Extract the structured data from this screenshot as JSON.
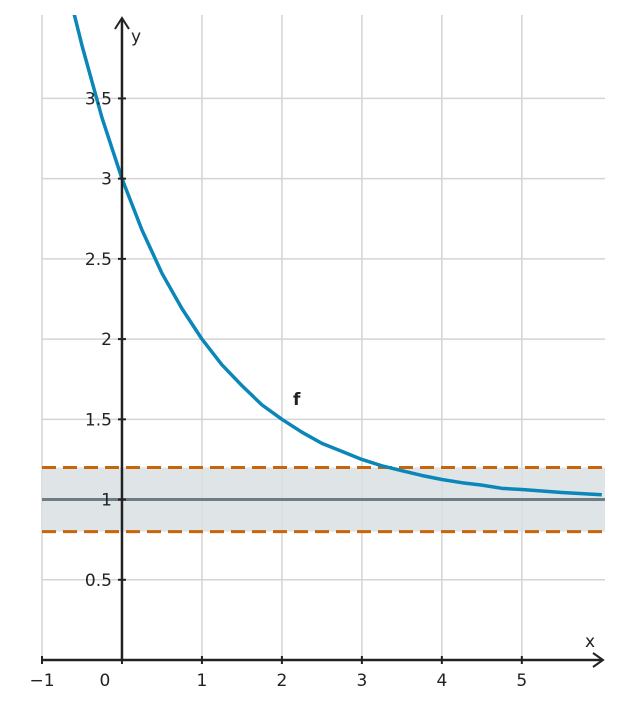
{
  "chart_data": {
    "type": "line",
    "x_label": "x",
    "y_label": "y",
    "x": [
      -0.6,
      -0.5,
      -0.25,
      0,
      0.25,
      0.5,
      0.75,
      1,
      1.25,
      1.5,
      1.75,
      2,
      2.25,
      2.5,
      2.75,
      3,
      3.25,
      3.5,
      3.75,
      4,
      4.25,
      4.5,
      4.75,
      5,
      5.5,
      6
    ],
    "series": [
      {
        "name": "f",
        "color": "#0a87b8",
        "values": [
          4.03,
          3.83,
          3.38,
          3,
          2.68,
          2.41,
          2.19,
          2,
          1.84,
          1.71,
          1.59,
          1.5,
          1.42,
          1.35,
          1.3,
          1.25,
          1.21,
          1.18,
          1.15,
          1.125,
          1.105,
          1.09,
          1.07,
          1.0625,
          1.044,
          1.03
        ]
      }
    ],
    "reference_line": {
      "value": 1,
      "color": "#6e7c85"
    },
    "band": {
      "values": [
        0.8,
        1.2
      ],
      "color": "#c8650a",
      "fill": "#d9dfe2"
    },
    "xlim": [
      -1,
      6.04
    ],
    "ylim": [
      0,
      4.02
    ],
    "xticks": [
      {
        "value": -1,
        "label": "−1"
      },
      0,
      1,
      2,
      3,
      4,
      5
    ],
    "yticks": [
      0.5,
      1,
      1.5,
      2,
      2.5,
      3,
      3.5
    ],
    "grid": true
  }
}
